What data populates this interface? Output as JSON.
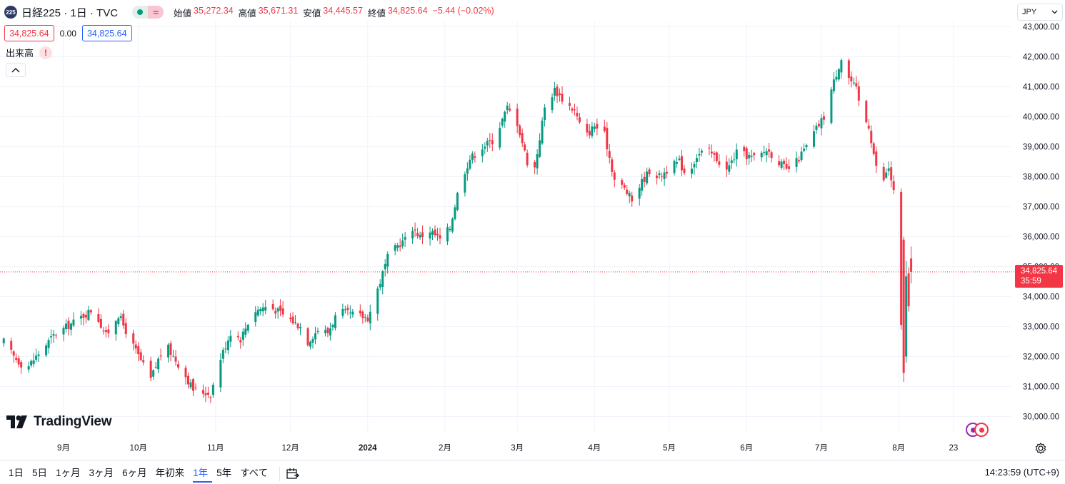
{
  "header": {
    "symbol_badge": "225",
    "title": "日経225 · 1日 · TVC",
    "delay_icon": "≈",
    "ohlc": [
      {
        "label": "始値",
        "value": "35,272.34"
      },
      {
        "label": "高値",
        "value": "35,671.31"
      },
      {
        "label": "安値",
        "value": "34,445.57"
      },
      {
        "label": "終値",
        "value": "34,825.64"
      }
    ],
    "change": "−5.44 (−0.02%)"
  },
  "trade": {
    "sell": "34,825.64",
    "spread": "0.00",
    "buy": "34,825.64"
  },
  "volume": {
    "label": "出来高",
    "warn": "!"
  },
  "currency": {
    "value": "JPY"
  },
  "last_price": {
    "price": "34,825.64",
    "countdown": "35:59",
    "value": 34825.64
  },
  "logo": {
    "text": "TradingView"
  },
  "ranges": [
    "1日",
    "5日",
    "1ヶ月",
    "3ヶ月",
    "6ヶ月",
    "年初来",
    "1年",
    "5年",
    "すべて"
  ],
  "active_range": "1年",
  "clock": "14:23:59 (UTC+9)",
  "colors": {
    "up": "#089981",
    "down": "#f23645",
    "grid": "#f0f3fa",
    "text": "#131722",
    "accent": "#2962ff"
  },
  "chart_data": {
    "type": "candlestick",
    "ylim": [
      29500,
      43300
    ],
    "y_ticks": [
      "30,000.00",
      "31,000.00",
      "32,000.00",
      "33,000.00",
      "34,000.00",
      "35,000.00",
      "36,000.00",
      "37,000.00",
      "38,000.00",
      "39,000.00",
      "40,000.00",
      "41,000.00",
      "42,000.00",
      "43,000.00"
    ],
    "y_tick_values": [
      30000,
      31000,
      32000,
      33000,
      34000,
      35000,
      36000,
      37000,
      38000,
      39000,
      40000,
      41000,
      42000,
      43000
    ],
    "x_labels": [
      {
        "label": "9月",
        "day": 0
      },
      {
        "label": "10月",
        "day": 30
      },
      {
        "label": "11月",
        "day": 61
      },
      {
        "label": "12月",
        "day": 91
      },
      {
        "label": "2024",
        "day": 122,
        "bold": true
      },
      {
        "label": "2月",
        "day": 153
      },
      {
        "label": "3月",
        "day": 182
      },
      {
        "label": "4月",
        "day": 213
      },
      {
        "label": "5月",
        "day": 243
      },
      {
        "label": "6月",
        "day": 274
      },
      {
        "label": "7月",
        "day": 304
      },
      {
        "label": "8月",
        "day": 335
      },
      {
        "label": "23",
        "day": 357
      }
    ],
    "key_points": [
      [
        -24,
        32500
      ],
      [
        -20,
        32000
      ],
      [
        -15,
        31600
      ],
      [
        -8,
        32300
      ],
      [
        -4,
        32700
      ],
      [
        5,
        33200
      ],
      [
        12,
        33600
      ],
      [
        17,
        32700
      ],
      [
        22,
        33400
      ],
      [
        27,
        32500
      ],
      [
        32,
        31700
      ],
      [
        33,
        30800
      ],
      [
        38,
        31900
      ],
      [
        41,
        32400
      ],
      [
        48,
        31500
      ],
      [
        52,
        30900
      ],
      [
        59,
        30750
      ],
      [
        63,
        31950
      ],
      [
        67,
        32800
      ],
      [
        71,
        32600
      ],
      [
        76,
        33500
      ],
      [
        82,
        33700
      ],
      [
        88,
        33400
      ],
      [
        95,
        33000
      ],
      [
        98,
        32500
      ],
      [
        102,
        32900
      ],
      [
        106,
        32800
      ],
      [
        110,
        33500
      ],
      [
        116,
        33400
      ],
      [
        122,
        33300
      ],
      [
        123,
        33500
      ],
      [
        127,
        34500
      ],
      [
        130,
        35300
      ],
      [
        134,
        35700
      ],
      [
        137,
        35900
      ],
      [
        140,
        36300
      ],
      [
        143,
        36000
      ],
      [
        147,
        36200
      ],
      [
        151,
        35900
      ],
      [
        155,
        36300
      ],
      [
        159,
        37800
      ],
      [
        163,
        38600
      ],
      [
        168,
        39000
      ],
      [
        172,
        39200
      ],
      [
        175,
        39700
      ],
      [
        178,
        40300
      ],
      [
        182,
        39800
      ],
      [
        186,
        38500
      ],
      [
        189,
        38300
      ],
      [
        193,
        40300
      ],
      [
        197,
        40900
      ],
      [
        201,
        40500
      ],
      [
        205,
        40200
      ],
      [
        209,
        39300
      ],
      [
        213,
        39700
      ],
      [
        217,
        39400
      ],
      [
        221,
        37900
      ],
      [
        225,
        37600
      ],
      [
        228,
        37200
      ],
      [
        231,
        37700
      ],
      [
        235,
        38200
      ],
      [
        239,
        38000
      ],
      [
        243,
        38300
      ],
      [
        247,
        38500
      ],
      [
        250,
        38000
      ],
      [
        254,
        38700
      ],
      [
        258,
        38900
      ],
      [
        262,
        38600
      ],
      [
        266,
        38200
      ],
      [
        270,
        38800
      ],
      [
        274,
        38700
      ],
      [
        278,
        38600
      ],
      [
        282,
        38900
      ],
      [
        286,
        38600
      ],
      [
        290,
        38200
      ],
      [
        294,
        38500
      ],
      [
        298,
        39000
      ],
      [
        302,
        39600
      ],
      [
        305,
        40000
      ],
      [
        308,
        40900
      ],
      [
        311,
        41700
      ],
      [
        313,
        42200
      ],
      [
        315,
        41300
      ],
      [
        318,
        40900
      ],
      [
        320,
        40100
      ],
      [
        323,
        39700
      ],
      [
        326,
        38300
      ],
      [
        329,
        37900
      ],
      [
        331,
        38300
      ],
      [
        333,
        37500
      ],
      [
        334,
        35900
      ],
      [
        337,
        31500
      ],
      [
        340,
        34700
      ],
      [
        342,
        34825.64
      ]
    ],
    "last": {
      "open": 35272.34,
      "high": 35671.31,
      "low": 34445.57,
      "close": 34825.64
    }
  }
}
